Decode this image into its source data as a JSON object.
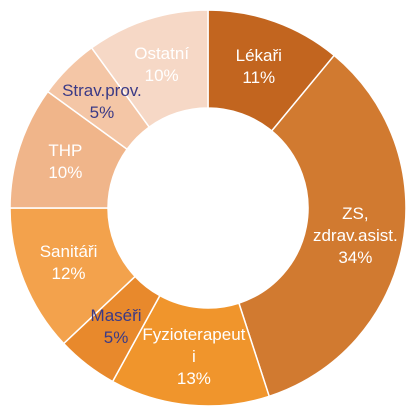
{
  "chart_data": {
    "type": "donut",
    "categories": [
      "Lékaři",
      "ZS, zdrav.asist.",
      "Fyzioterapeuti",
      "Maséři",
      "Sanitáři",
      "THP",
      "Strav.prov.",
      "Ostatní"
    ],
    "values": [
      11,
      34,
      13,
      5,
      12,
      10,
      5,
      10
    ],
    "value_labels": [
      "11%",
      "34%",
      "13%",
      "5%",
      "12%",
      "10%",
      "5%",
      "10%"
    ],
    "colors": [
      "#c2651f",
      "#d17a30",
      "#f0952c",
      "#e8892c",
      "#f3a24c",
      "#f0b58a",
      "#f4c6a6",
      "#f6d8c6"
    ],
    "label_colors": [
      "#ffffff",
      "#ffffff",
      "#ffffff",
      "#3b3a86",
      "#ffffff",
      "#ffffff",
      "#3b3a86",
      "#ffffff"
    ]
  }
}
